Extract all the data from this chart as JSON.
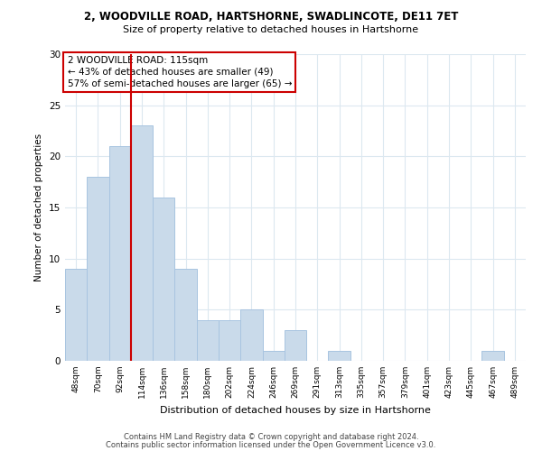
{
  "title1": "2, WOODVILLE ROAD, HARTSHORNE, SWADLINCOTE, DE11 7ET",
  "title2": "Size of property relative to detached houses in Hartshorne",
  "xlabel": "Distribution of detached houses by size in Hartshorne",
  "ylabel": "Number of detached properties",
  "categories": [
    "48sqm",
    "70sqm",
    "92sqm",
    "114sqm",
    "136sqm",
    "158sqm",
    "180sqm",
    "202sqm",
    "224sqm",
    "246sqm",
    "269sqm",
    "291sqm",
    "313sqm",
    "335sqm",
    "357sqm",
    "379sqm",
    "401sqm",
    "423sqm",
    "445sqm",
    "467sqm",
    "489sqm"
  ],
  "values": [
    9,
    18,
    21,
    23,
    16,
    9,
    4,
    4,
    5,
    1,
    3,
    0,
    1,
    0,
    0,
    0,
    0,
    0,
    0,
    1,
    0
  ],
  "bar_color": "#c9daea",
  "bar_edge_color": "#a8c4e0",
  "ref_line_index": 3,
  "annotation_line1": "2 WOODVILLE ROAD: 115sqm",
  "annotation_line2": "← 43% of detached houses are smaller (49)",
  "annotation_line3": "57% of semi-detached houses are larger (65) →",
  "annotation_box_color": "#ffffff",
  "annotation_box_edge": "#cc0000",
  "ref_line_color": "#cc0000",
  "ylim": [
    0,
    30
  ],
  "yticks": [
    0,
    5,
    10,
    15,
    20,
    25,
    30
  ],
  "background_color": "#ffffff",
  "grid_color": "#dce8f0",
  "footer1": "Contains HM Land Registry data © Crown copyright and database right 2024.",
  "footer2": "Contains public sector information licensed under the Open Government Licence v3.0."
}
